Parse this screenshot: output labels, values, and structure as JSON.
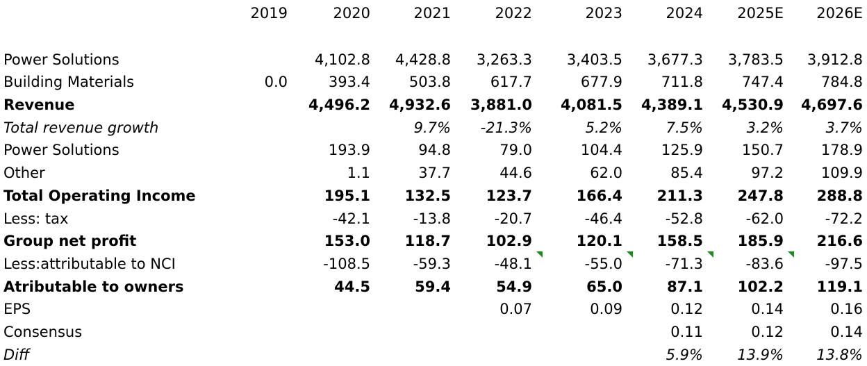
{
  "table": {
    "columns": [
      "2019",
      "2020",
      "2021",
      "2022",
      "2023",
      "2024",
      "2025E",
      "2026E"
    ],
    "rows": [
      {
        "label": "Power Solutions",
        "style": "normal",
        "values": [
          "",
          "4,102.8",
          "4,428.8",
          "3,263.3",
          "3,403.5",
          "3,677.3",
          "3,783.5",
          "3,912.8"
        ]
      },
      {
        "label": "Building Materials",
        "style": "normal",
        "values": [
          "0.0",
          "393.4",
          "503.8",
          "617.7",
          "677.9",
          "711.8",
          "747.4",
          "784.8"
        ]
      },
      {
        "label": "Revenue",
        "style": "bold",
        "values": [
          "",
          "4,496.2",
          "4,932.6",
          "3,881.0",
          "4,081.5",
          "4,389.1",
          "4,530.9",
          "4,697.6"
        ]
      },
      {
        "label": "Total revenue growth",
        "style": "italic",
        "values": [
          "",
          "",
          "9.7%",
          "-21.3%",
          "5.2%",
          "7.5%",
          "3.2%",
          "3.7%"
        ]
      },
      {
        "label": "Power Solutions",
        "style": "normal",
        "values": [
          "",
          "193.9",
          "94.8",
          "79.0",
          "104.4",
          "125.9",
          "150.7",
          "178.9"
        ]
      },
      {
        "label": "Other",
        "style": "normal",
        "values": [
          "",
          "1.1",
          "37.7",
          "44.6",
          "62.0",
          "85.4",
          "97.2",
          "109.9"
        ]
      },
      {
        "label": "Total Operating Income",
        "style": "bold",
        "values": [
          "",
          "195.1",
          "132.5",
          "123.7",
          "166.4",
          "211.3",
          "247.8",
          "288.8"
        ]
      },
      {
        "label": "Less: tax",
        "style": "normal",
        "values": [
          "",
          "-42.1",
          "-13.8",
          "-20.7",
          "-46.4",
          "-52.8",
          "-62.0",
          "-72.2"
        ]
      },
      {
        "label": "Group net profit",
        "style": "bold",
        "values": [
          "",
          "153.0",
          "118.7",
          "102.9",
          "120.1",
          "158.5",
          "185.9",
          "216.6"
        ]
      },
      {
        "label": "Less:attributable to NCI",
        "style": "normal",
        "values": [
          "",
          "-108.5",
          "-59.3",
          "-48.1",
          "-55.0",
          "-71.3",
          "-83.6",
          "-97.5"
        ]
      },
      {
        "label": "Atributable to owners",
        "style": "bold",
        "values": [
          "",
          "44.5",
          "59.4",
          "54.9",
          "65.0",
          "87.1",
          "102.2",
          "119.1"
        ]
      },
      {
        "label": "EPS",
        "style": "normal",
        "values": [
          "",
          "",
          "",
          "0.07",
          "0.09",
          "0.12",
          "0.14",
          "0.16"
        ]
      },
      {
        "label": "Consensus",
        "style": "normal",
        "values": [
          "",
          "",
          "",
          "",
          "",
          "0.11",
          "0.12",
          "0.14"
        ]
      },
      {
        "label": "Diff",
        "style": "italic",
        "values": [
          "",
          "",
          "",
          "",
          "",
          "5.9%",
          "13.9%",
          "13.8%"
        ]
      }
    ]
  },
  "comment_marker_color": "#1f8a1f"
}
